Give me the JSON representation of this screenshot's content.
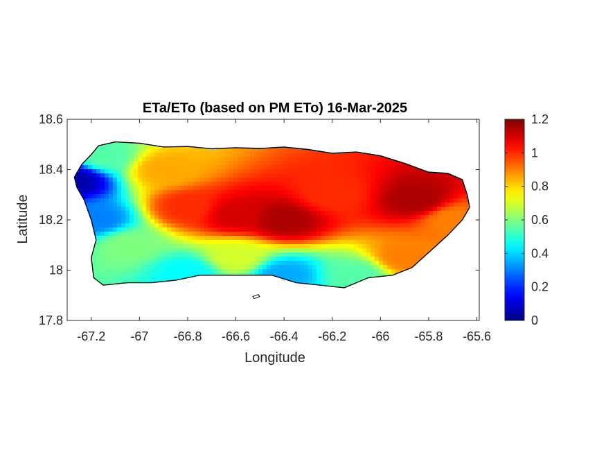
{
  "chart_data": {
    "type": "heatmap",
    "title": "ETa/ETo (based on PM ETo) 16-Mar-2025",
    "xlabel": "Longitude",
    "ylabel": "Latitude",
    "xlim": [
      -67.3,
      -65.59
    ],
    "ylim": [
      17.8,
      18.6
    ],
    "xticks": [
      -67.2,
      -67,
      -66.8,
      -66.6,
      -66.4,
      -66.2,
      -66,
      -65.8,
      -65.6
    ],
    "xtick_labels": [
      "-67.2",
      "-67",
      "-66.8",
      "-66.6",
      "-66.4",
      "-66.2",
      "-66",
      "-65.8",
      "-65.6"
    ],
    "yticks": [
      17.8,
      18,
      18.2,
      18.4,
      18.6
    ],
    "ytick_labels": [
      "17.8",
      "18",
      "18.2",
      "18.4",
      "18.6"
    ],
    "colorbar": {
      "colormap": "jet",
      "limits": [
        0,
        1.2
      ],
      "ticks": [
        0,
        0.2,
        0.4,
        0.6,
        0.8,
        1,
        1.2
      ],
      "tick_labels": [
        "0",
        "0.2",
        "0.4",
        "0.6",
        "0.8",
        "1",
        "1.2"
      ]
    },
    "grid": false,
    "region_outline": [
      [
        -67.27,
        18.37
      ],
      [
        -67.24,
        18.42
      ],
      [
        -67.2,
        18.46
      ],
      [
        -67.17,
        18.495
      ],
      [
        -67.1,
        18.51
      ],
      [
        -67.0,
        18.505
      ],
      [
        -66.9,
        18.49
      ],
      [
        -66.8,
        18.492
      ],
      [
        -66.7,
        18.483
      ],
      [
        -66.6,
        18.487
      ],
      [
        -66.5,
        18.484
      ],
      [
        -66.4,
        18.49
      ],
      [
        -66.3,
        18.48
      ],
      [
        -66.2,
        18.465
      ],
      [
        -66.1,
        18.47
      ],
      [
        -66.0,
        18.455
      ],
      [
        -65.9,
        18.425
      ],
      [
        -65.8,
        18.39
      ],
      [
        -65.72,
        18.385
      ],
      [
        -65.66,
        18.36
      ],
      [
        -65.64,
        18.3
      ],
      [
        -65.63,
        18.25
      ],
      [
        -65.66,
        18.2
      ],
      [
        -65.72,
        18.14
      ],
      [
        -65.8,
        18.07
      ],
      [
        -65.87,
        18.01
      ],
      [
        -65.95,
        17.98
      ],
      [
        -66.05,
        17.97
      ],
      [
        -66.15,
        17.93
      ],
      [
        -66.25,
        17.94
      ],
      [
        -66.35,
        17.95
      ],
      [
        -66.45,
        17.98
      ],
      [
        -66.55,
        17.98
      ],
      [
        -66.65,
        17.98
      ],
      [
        -66.75,
        17.98
      ],
      [
        -66.85,
        17.96
      ],
      [
        -66.95,
        17.95
      ],
      [
        -67.05,
        17.95
      ],
      [
        -67.15,
        17.94
      ],
      [
        -67.19,
        17.97
      ],
      [
        -67.2,
        18.05
      ],
      [
        -67.18,
        18.12
      ],
      [
        -67.2,
        18.2
      ],
      [
        -67.23,
        18.28
      ],
      [
        -67.26,
        18.33
      ]
    ],
    "value_field_samples": [
      {
        "lon": -67.27,
        "lat": 18.36,
        "value": 0.05
      },
      {
        "lon": -67.18,
        "lat": 18.2,
        "value": 0.3
      },
      {
        "lon": -67.15,
        "lat": 18.45,
        "value": 0.55
      },
      {
        "lon": -67.05,
        "lat": 18.1,
        "value": 0.6
      },
      {
        "lon": -66.9,
        "lat": 18.4,
        "value": 0.85
      },
      {
        "lon": -66.8,
        "lat": 18.25,
        "value": 1.0
      },
      {
        "lon": -66.6,
        "lat": 18.22,
        "value": 1.1
      },
      {
        "lon": -66.4,
        "lat": 18.2,
        "value": 1.15
      },
      {
        "lon": -66.2,
        "lat": 18.3,
        "value": 1.0
      },
      {
        "lon": -65.85,
        "lat": 18.28,
        "value": 1.15
      },
      {
        "lon": -65.7,
        "lat": 18.2,
        "value": 0.9
      },
      {
        "lon": -66.6,
        "lat": 18.05,
        "value": 0.7
      },
      {
        "lon": -66.4,
        "lat": 17.98,
        "value": 0.35
      },
      {
        "lon": -66.8,
        "lat": 17.99,
        "value": 0.45
      },
      {
        "lon": -66.1,
        "lat": 17.98,
        "value": 0.55
      },
      {
        "lon": -65.9,
        "lat": 18.05,
        "value": 0.9
      }
    ]
  }
}
